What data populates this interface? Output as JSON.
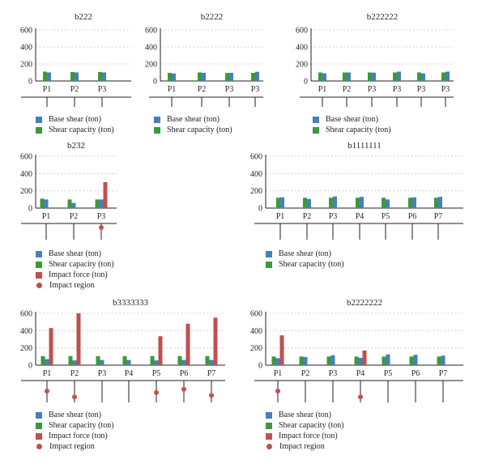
{
  "colors": {
    "base_shear": "#4a7ebb",
    "shear_capacity": "#3a9a3a",
    "impact_force": "#c0504d",
    "impact_region": "#c0504d",
    "grid": "#b8b8b8",
    "axis": "#231f20"
  },
  "legend_labels": {
    "base_shear": "Base shear (ton)",
    "shear_capacity": "Shear capacity (ton)",
    "impact_force": "Impact force (ton)",
    "impact_region": "Impact region"
  },
  "chart_data": [
    {
      "type": "bar",
      "title": "b222",
      "categories": [
        "P1",
        "P2",
        "P3"
      ],
      "ylim": [
        0,
        600
      ],
      "yticks": [
        0,
        200,
        400,
        600
      ],
      "grid": true,
      "series": [
        {
          "name": "Shear capacity (ton)",
          "values": [
            110,
            105,
            105
          ]
        },
        {
          "name": "Base shear (ton)",
          "values": [
            100,
            100,
            100
          ]
        }
      ],
      "impact_region": []
    },
    {
      "type": "bar",
      "title": "b2222",
      "categories": [
        "P1",
        "P2",
        "P3",
        "P3"
      ],
      "ylim": [
        0,
        600
      ],
      "yticks": [
        0,
        200,
        400,
        600
      ],
      "grid": true,
      "series": [
        {
          "name": "Shear capacity (ton)",
          "values": [
            95,
            100,
            95,
            95
          ]
        },
        {
          "name": "Base shear (ton)",
          "values": [
            88,
            96,
            96,
            108
          ]
        }
      ],
      "impact_region": []
    },
    {
      "type": "bar",
      "title": "b222222",
      "categories": [
        "P1",
        "P2",
        "P3",
        "P3",
        "P3",
        "P3"
      ],
      "ylim": [
        0,
        600
      ],
      "yticks": [
        0,
        200,
        400,
        600
      ],
      "grid": true,
      "series": [
        {
          "name": "Shear capacity (ton)",
          "values": [
            100,
            100,
            100,
            100,
            100,
            100
          ]
        },
        {
          "name": "Base shear (ton)",
          "values": [
            90,
            100,
            98,
            110,
            88,
            110
          ]
        }
      ],
      "impact_region": []
    },
    {
      "type": "bar",
      "title": "b232",
      "categories": [
        "P1",
        "P2",
        "P3"
      ],
      "ylim": [
        0,
        600
      ],
      "yticks": [
        0,
        200,
        400,
        600
      ],
      "grid": true,
      "series": [
        {
          "name": "Shear capacity (ton)",
          "values": [
            110,
            100,
            100
          ]
        },
        {
          "name": "Base shear (ton)",
          "values": [
            100,
            60,
            100
          ]
        },
        {
          "name": "Impact force (ton)",
          "values": [
            0,
            0,
            300
          ]
        }
      ],
      "impact_region": [
        "P3"
      ]
    },
    {
      "type": "bar",
      "title": "b1111111",
      "categories": [
        "P1",
        "P2",
        "P3",
        "P4",
        "P5",
        "P6",
        "P7"
      ],
      "ylim": [
        0,
        600
      ],
      "yticks": [
        0,
        200,
        400,
        600
      ],
      "grid": true,
      "series": [
        {
          "name": "Shear capacity (ton)",
          "values": [
            120,
            120,
            120,
            120,
            120,
            120,
            120
          ]
        },
        {
          "name": "Base shear (ton)",
          "values": [
            125,
            105,
            135,
            130,
            100,
            125,
            130
          ]
        }
      ],
      "impact_region": []
    },
    {
      "type": "bar",
      "title": "b3333333",
      "categories": [
        "P1",
        "P2",
        "P3",
        "P4",
        "P5",
        "P6",
        "P7"
      ],
      "ylim": [
        0,
        600
      ],
      "yticks": [
        0,
        200,
        400,
        600
      ],
      "grid": true,
      "series": [
        {
          "name": "Shear capacity (ton)",
          "values": [
            105,
            105,
            105,
            105,
            105,
            105,
            105
          ]
        },
        {
          "name": "Base shear (ton)",
          "values": [
            70,
            55,
            60,
            60,
            55,
            60,
            60
          ]
        },
        {
          "name": "Impact force (ton)",
          "values": [
            430,
            620,
            0,
            0,
            335,
            480,
            550
          ]
        }
      ],
      "impact_region": [
        "P1",
        "P2",
        "P5",
        "P6",
        "P7"
      ]
    },
    {
      "type": "bar",
      "title": "b2222222",
      "categories": [
        "P1",
        "P2",
        "P3",
        "P4",
        "P5",
        "P6",
        "P7"
      ],
      "ylim": [
        0,
        600
      ],
      "yticks": [
        0,
        200,
        400,
        600
      ],
      "grid": true,
      "series": [
        {
          "name": "Shear capacity (ton)",
          "values": [
            100,
            100,
            100,
            100,
            100,
            100,
            100
          ]
        },
        {
          "name": "Base shear (ton)",
          "values": [
            80,
            95,
            115,
            85,
            125,
            120,
            110
          ]
        },
        {
          "name": "Impact force (ton)",
          "values": [
            345,
            0,
            0,
            170,
            0,
            0,
            0
          ]
        }
      ],
      "impact_region": [
        "P1",
        "P4"
      ]
    }
  ]
}
